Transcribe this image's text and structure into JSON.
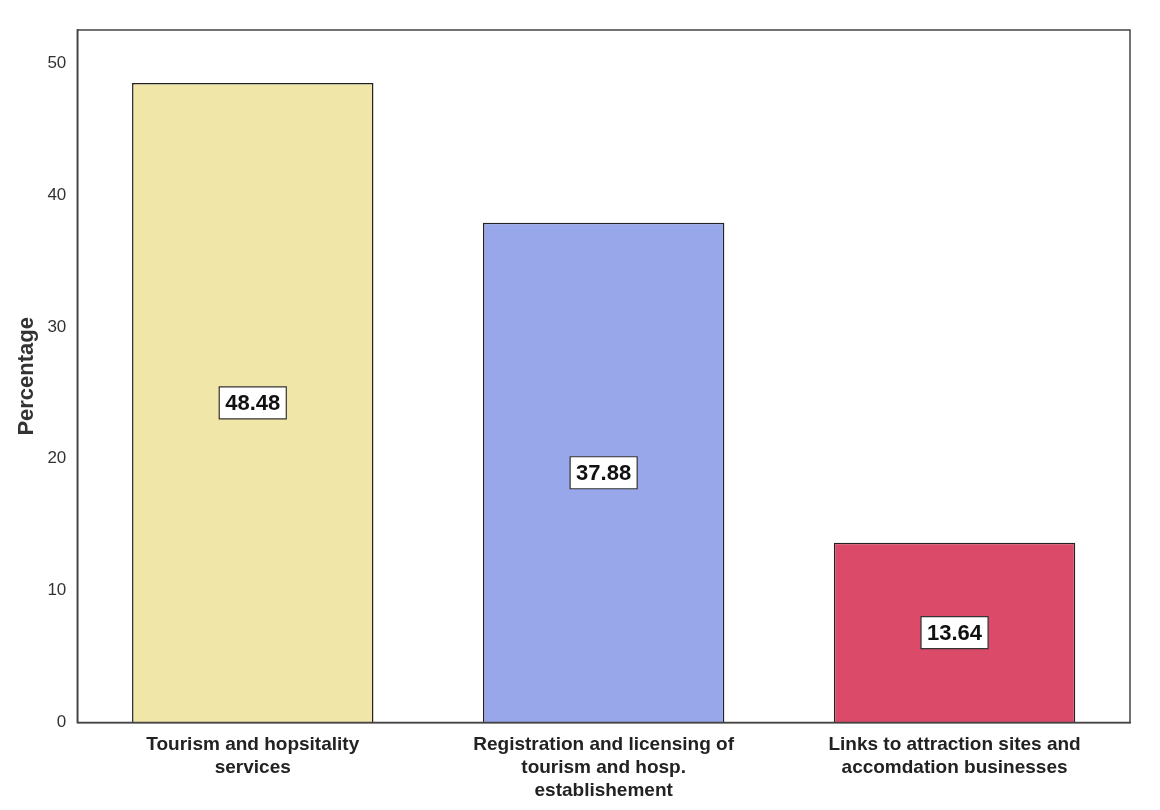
{
  "chart_data": {
    "type": "bar",
    "ylabel": "Percentage",
    "categories": [
      "Tourism and hopsitality services",
      "Registration and licensing of tourism and hosp. establishement",
      "Links to attraction sites and accomdation businesses"
    ],
    "values": [
      48.48,
      37.88,
      13.64
    ],
    "colors": [
      "#f0e6a8",
      "#98a6ea",
      "#dc4a6a"
    ],
    "ylim": [
      0,
      52.5
    ],
    "yticks": [
      0,
      10,
      20,
      30,
      40,
      50
    ],
    "grid": false,
    "legend": false,
    "data_labels": true
  }
}
